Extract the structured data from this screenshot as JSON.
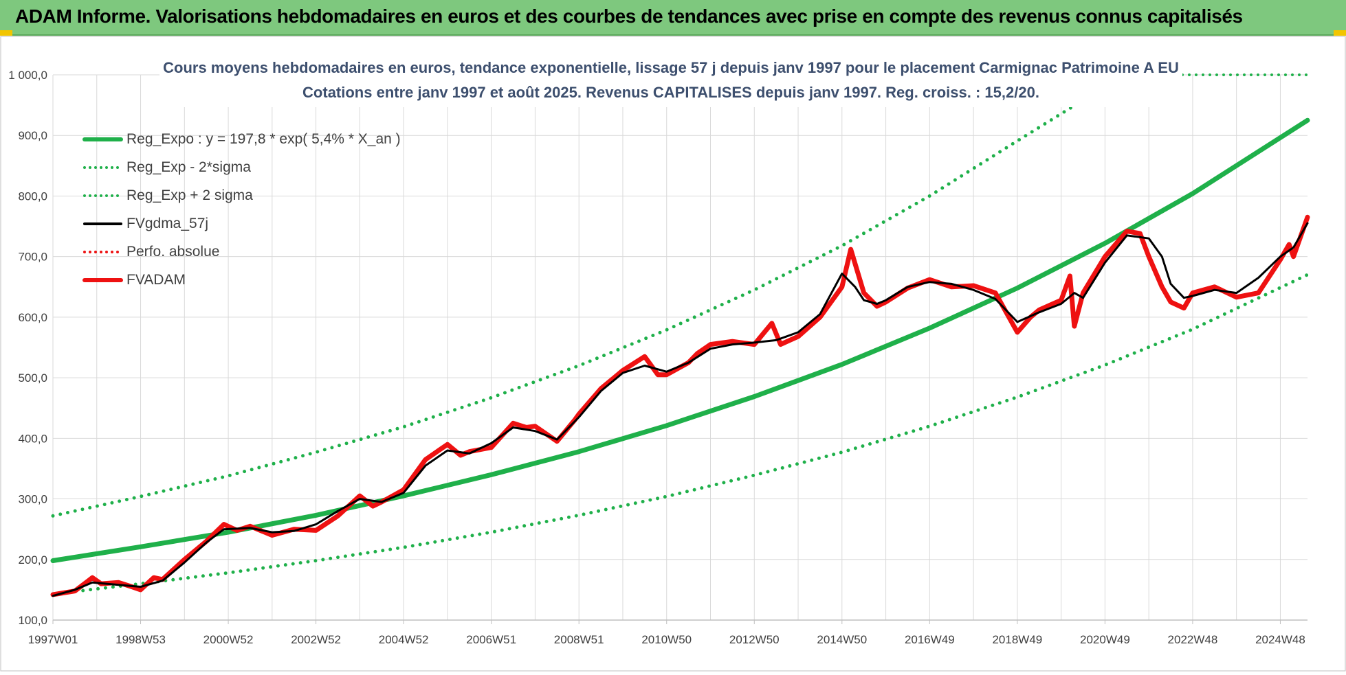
{
  "header": {
    "title": "ADAM Informe. Valorisations hebdomadaires en euros et des courbes de tendances avec prise en compte des revenus connus capitalisés"
  },
  "colors": {
    "header_bg": "#7ec87e",
    "trend_green": "#1fb04a",
    "fvgdma_black": "#000000",
    "fvadam_red": "#ee1111",
    "grid": "#d9d9d9"
  },
  "chart_data": {
    "type": "line",
    "title": "Cours moyens hebdomadaires en euros, tendance exponentielle, lissage 57 j depuis janv 1997 pour le placement Carmignac Patrimoine A EU",
    "subtitle": "Cotations entre janv 1997 et août 2025. Revenus CAPITALISES depuis janv 1997. Reg. croiss. : 15,2/20.",
    "xlabel": "",
    "ylabel": "",
    "xlim": [
      1997.0,
      2025.62
    ],
    "ylim": [
      100,
      1000
    ],
    "grid": true,
    "legend_position": "top-left",
    "y_ticks": [
      {
        "value": 100,
        "label": "100,0"
      },
      {
        "value": 200,
        "label": "200,0"
      },
      {
        "value": 300,
        "label": "300,0"
      },
      {
        "value": 400,
        "label": "400,0"
      },
      {
        "value": 500,
        "label": "500,0"
      },
      {
        "value": 600,
        "label": "600,0"
      },
      {
        "value": 700,
        "label": "700,0"
      },
      {
        "value": 800,
        "label": "800,0"
      },
      {
        "value": 900,
        "label": "900,0"
      },
      {
        "value": 1000,
        "label": "1 000,0"
      }
    ],
    "x_ticks": [
      {
        "x": 1997.0,
        "label": "1997W01"
      },
      {
        "x": 1999.0,
        "label": "1998W53"
      },
      {
        "x": 2001.0,
        "label": "2000W52"
      },
      {
        "x": 2003.0,
        "label": "2002W52"
      },
      {
        "x": 2005.0,
        "label": "2004W52"
      },
      {
        "x": 2007.0,
        "label": "2006W51"
      },
      {
        "x": 2009.0,
        "label": "2008W51"
      },
      {
        "x": 2011.0,
        "label": "2010W50"
      },
      {
        "x": 2013.0,
        "label": "2012W50"
      },
      {
        "x": 2015.0,
        "label": "2014W50"
      },
      {
        "x": 2017.0,
        "label": "2016W49"
      },
      {
        "x": 2019.0,
        "label": "2018W49"
      },
      {
        "x": 2021.0,
        "label": "2020W49"
      },
      {
        "x": 2023.0,
        "label": "2022W48"
      },
      {
        "x": 2025.0,
        "label": "2024W48"
      }
    ],
    "series": [
      {
        "name": "Reg_Expo : y = 197,8 * exp( 5,4% *  X_an )",
        "style": "solid-thick",
        "color": "#1fb04a",
        "x": [
          1997.0,
          1999.0,
          2001.0,
          2003.0,
          2005.0,
          2007.0,
          2009.0,
          2011.0,
          2013.0,
          2015.0,
          2017.0,
          2019.0,
          2021.0,
          2023.0,
          2025.62
        ],
        "y": [
          198,
          221,
          245,
          273,
          305,
          340,
          378,
          421,
          469,
          522,
          582,
          648,
          722,
          804,
          925
        ]
      },
      {
        "name": "Reg_Exp - 2*sigma",
        "style": "dotted",
        "color": "#1fb04a",
        "x": [
          1997.0,
          1999.0,
          2001.0,
          2003.0,
          2005.0,
          2007.0,
          2009.0,
          2011.0,
          2013.0,
          2015.0,
          2017.0,
          2019.0,
          2021.0,
          2023.0,
          2025.62
        ],
        "y": [
          143,
          160,
          178,
          198,
          220,
          245,
          273,
          304,
          339,
          377,
          420,
          468,
          521,
          580,
          670
        ]
      },
      {
        "name": "Reg_Exp + 2 sigma",
        "style": "dotted",
        "color": "#1fb04a",
        "x": [
          1997.0,
          1999.0,
          2001.0,
          2003.0,
          2005.0,
          2007.0,
          2009.0,
          2011.0,
          2013.0,
          2015.0,
          2017.0,
          2019.0,
          2020.32
        ],
        "y": [
          272,
          304,
          338,
          377,
          419,
          467,
          520,
          579,
          645,
          718,
          800,
          891,
          950
        ]
      },
      {
        "name": "FVgdma_57j",
        "style": "solid",
        "color": "#000000",
        "x": [
          1997.0,
          1997.5,
          1997.9,
          1998.5,
          1999.0,
          1999.5,
          2000.0,
          2000.5,
          2000.9,
          2001.5,
          2002.0,
          2002.5,
          2003.0,
          2003.5,
          2004.0,
          2004.5,
          2005.0,
          2005.5,
          2006.0,
          2006.5,
          2007.0,
          2007.5,
          2008.0,
          2008.5,
          2009.0,
          2009.5,
          2010.0,
          2010.5,
          2011.0,
          2011.5,
          2012.0,
          2012.5,
          2013.0,
          2013.5,
          2014.0,
          2014.5,
          2015.0,
          2015.3,
          2015.5,
          2015.8,
          2016.0,
          2016.5,
          2017.0,
          2017.5,
          2018.0,
          2018.5,
          2019.0,
          2019.5,
          2020.0,
          2020.3,
          2020.5,
          2021.0,
          2021.5,
          2022.0,
          2022.3,
          2022.5,
          2022.8,
          2023.0,
          2023.5,
          2024.0,
          2024.5,
          2025.0,
          2025.3,
          2025.62
        ],
        "y": [
          140,
          150,
          162,
          158,
          155,
          165,
          195,
          228,
          250,
          252,
          245,
          247,
          258,
          280,
          300,
          295,
          310,
          355,
          380,
          375,
          392,
          418,
          412,
          398,
          435,
          478,
          508,
          520,
          510,
          525,
          548,
          555,
          558,
          562,
          575,
          605,
          672,
          650,
          628,
          622,
          628,
          650,
          658,
          655,
          645,
          630,
          592,
          608,
          622,
          640,
          632,
          690,
          735,
          730,
          700,
          655,
          632,
          635,
          645,
          640,
          665,
          700,
          715,
          755
        ]
      },
      {
        "name": "Perfo. absolue",
        "style": "dotted",
        "color": "#ee1111",
        "x": [],
        "y": []
      },
      {
        "name": "FVADAM",
        "style": "solid-thick",
        "color": "#ee1111",
        "x": [
          1997.0,
          1997.5,
          1997.9,
          1998.1,
          1998.5,
          1998.8,
          1999.0,
          1999.3,
          1999.5,
          2000.0,
          2000.5,
          2000.9,
          2001.2,
          2001.5,
          2002.0,
          2002.5,
          2003.0,
          2003.5,
          2004.0,
          2004.3,
          2004.5,
          2005.0,
          2005.5,
          2006.0,
          2006.3,
          2006.5,
          2007.0,
          2007.5,
          2007.8,
          2008.0,
          2008.5,
          2008.9,
          2009.0,
          2009.5,
          2010.0,
          2010.5,
          2010.8,
          2011.0,
          2011.5,
          2011.7,
          2012.0,
          2012.5,
          2013.0,
          2013.4,
          2013.6,
          2014.0,
          2014.5,
          2015.0,
          2015.2,
          2015.5,
          2015.8,
          2016.0,
          2016.5,
          2017.0,
          2017.5,
          2018.0,
          2018.5,
          2019.0,
          2019.3,
          2019.5,
          2020.0,
          2020.2,
          2020.3,
          2020.5,
          2021.0,
          2021.5,
          2021.8,
          2022.0,
          2022.3,
          2022.5,
          2022.8,
          2023.0,
          2023.5,
          2024.0,
          2024.5,
          2025.0,
          2025.2,
          2025.3,
          2025.62
        ],
        "y": [
          142,
          148,
          170,
          160,
          162,
          155,
          150,
          170,
          167,
          200,
          230,
          258,
          248,
          255,
          240,
          250,
          248,
          272,
          305,
          288,
          295,
          315,
          365,
          390,
          372,
          378,
          385,
          425,
          418,
          420,
          395,
          430,
          440,
          482,
          512,
          535,
          505,
          505,
          525,
          540,
          555,
          560,
          555,
          590,
          555,
          568,
          600,
          650,
          712,
          640,
          618,
          625,
          648,
          662,
          650,
          652,
          640,
          575,
          600,
          612,
          628,
          668,
          585,
          640,
          700,
          742,
          738,
          700,
          650,
          625,
          615,
          640,
          650,
          633,
          640,
          695,
          720,
          700,
          765
        ]
      }
    ]
  }
}
